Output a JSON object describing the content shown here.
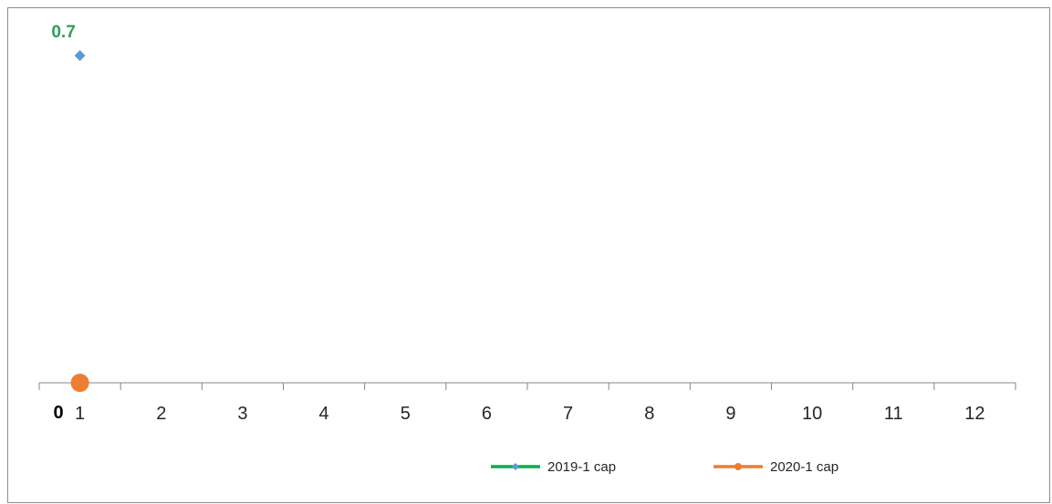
{
  "chart_data": {
    "type": "line",
    "x": [
      1
    ],
    "series": [
      {
        "name": "2019-1 cap",
        "values": [
          0.7
        ],
        "line_color": "#00b050",
        "marker_color": "#5b9bd5",
        "marker": "diamond"
      },
      {
        "name": "2020-1 cap",
        "values": [
          0
        ],
        "line_color": "#ed7d31",
        "marker_color": "#ed7d31",
        "marker": "circle"
      }
    ],
    "x_ticks": [
      "1",
      "2",
      "3",
      "4",
      "5",
      "6",
      "7",
      "8",
      "9",
      "10",
      "11",
      "12"
    ],
    "y_min_label": "0",
    "data_labels": [
      {
        "series": 0,
        "x": 1,
        "text": "0.7",
        "color": "#2e9e5b"
      }
    ],
    "ylim": [
      0,
      0.7
    ],
    "grid": false,
    "legend_position": "bottom",
    "title": "",
    "xlabel": "",
    "ylabel": ""
  }
}
